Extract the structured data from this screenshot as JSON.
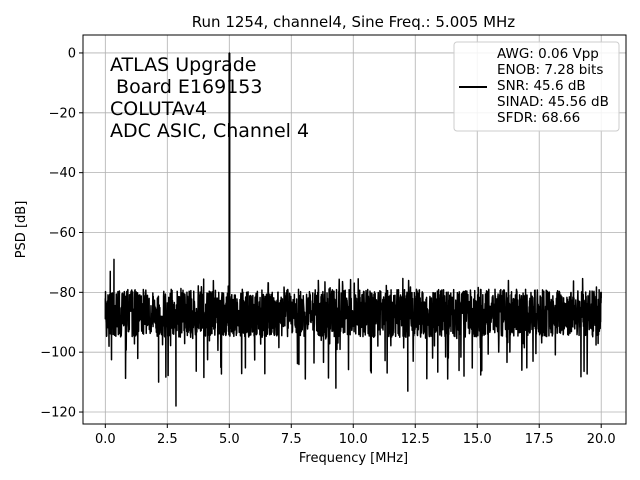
{
  "chart_data": {
    "type": "line",
    "title": "Run 1254, channel4, Sine Freq.: 5.005 MHz",
    "xlabel": "Frequency [MHz]",
    "ylabel": "PSD [dB]",
    "xlim": [
      -0.9,
      21.0
    ],
    "ylim": [
      -124,
      6
    ],
    "grid": true,
    "x_ticks": [
      0.0,
      2.5,
      5.0,
      7.5,
      10.0,
      12.5,
      15.0,
      17.5,
      20.0
    ],
    "x_tick_labels": [
      "0.0",
      "2.5",
      "5.0",
      "7.5",
      "10.0",
      "12.5",
      "15.0",
      "17.5",
      "20.0"
    ],
    "y_ticks": [
      0,
      -20,
      -40,
      -60,
      -80,
      -100,
      -120
    ],
    "y_tick_labels": [
      "0",
      "−20",
      "−40",
      "−60",
      "−80",
      "−100",
      "−120"
    ],
    "annotation_lines": [
      "ATLAS Upgrade",
      " Board E169153",
      "COLUTAv4",
      "ADC ASIC, Channel 4"
    ],
    "legend": {
      "placement": "upper-right",
      "lines": [
        "AWG: 0.06 Vpp",
        "ENOB: 7.28 bits",
        "SNR: 45.6 dB",
        "SINAD: 45.56 dB",
        "SFDR: 68.66"
      ]
    },
    "series": [
      {
        "color": "#000000",
        "peak": {
          "x": 5.005,
          "y": 0
        },
        "noise_floor_center": -87,
        "noise_floor_max": -68.7,
        "noise_floor_min": -118,
        "x_range": [
          0.0,
          20.0
        ],
        "notable_points": [
          {
            "x": 0.0,
            "y": -82
          },
          {
            "x": 0.15,
            "y": -98
          },
          {
            "x": 0.2,
            "y": -73
          },
          {
            "x": 0.35,
            "y": -69
          },
          {
            "x": 2.15,
            "y": -110
          },
          {
            "x": 2.85,
            "y": -118
          },
          {
            "x": 5.005,
            "y": 0
          },
          {
            "x": 5.0,
            "y": -72
          },
          {
            "x": 9.3,
            "y": -112
          },
          {
            "x": 12.2,
            "y": -113
          },
          {
            "x": 20.0,
            "y": -80
          }
        ]
      }
    ]
  }
}
